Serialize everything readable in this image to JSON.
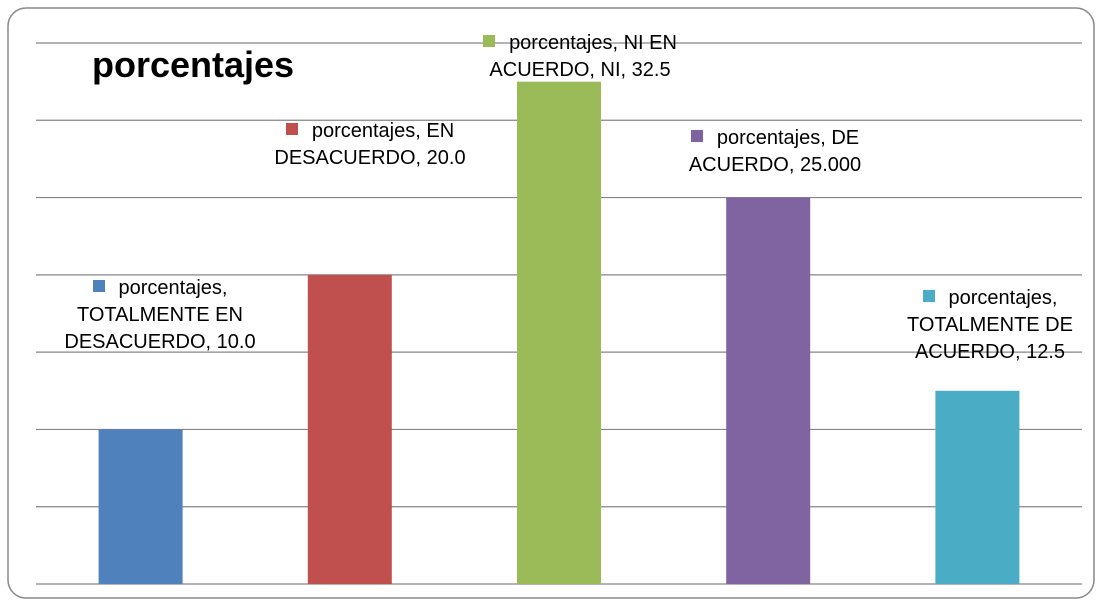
{
  "chart_data": {
    "type": "bar",
    "title": "porcentajes",
    "series_name": "porcentajes",
    "categories": [
      "TOTALMENTE EN DESACUERDO",
      " EN DESACUERDO",
      "NI EN ACUERDO, NI",
      "DE ACUERDO",
      "TOTALMENTE DE ACUERDO"
    ],
    "values": [
      10,
      20,
      32.5,
      25,
      12.5
    ],
    "value_labels": [
      "10.0",
      "20.0",
      "32.5",
      "25.000",
      "12.5"
    ],
    "colors": [
      "#4f81bd",
      "#c0504d",
      "#9bbb59",
      "#8064a2",
      "#4bacc6"
    ],
    "ylim": [
      0,
      35
    ],
    "yticks": [
      0,
      5,
      10,
      15,
      20,
      25,
      30,
      35
    ],
    "grid": true
  }
}
